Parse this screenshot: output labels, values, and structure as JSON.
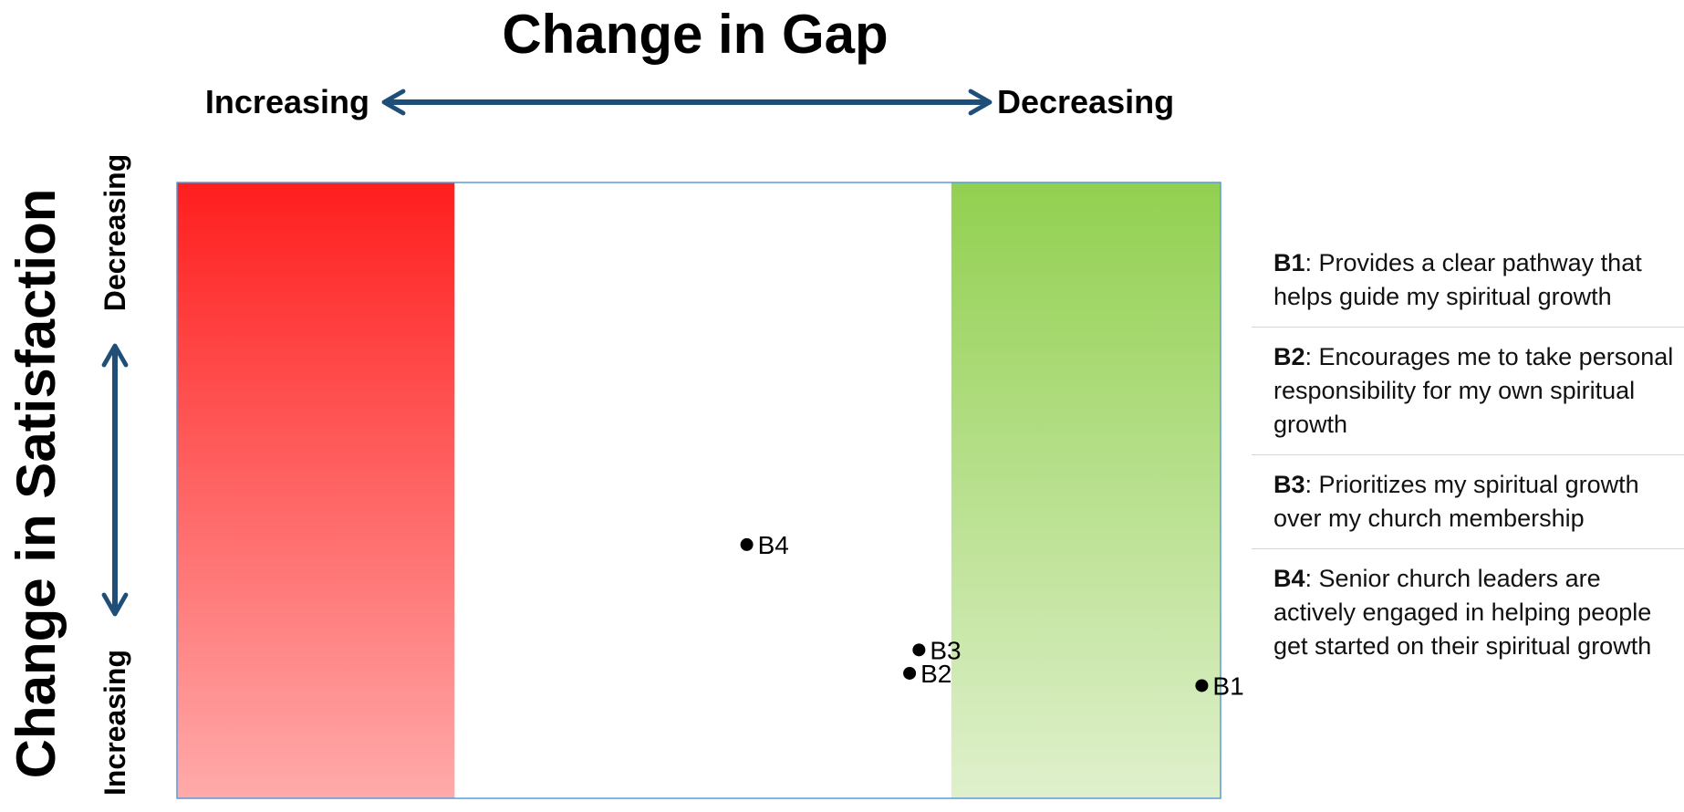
{
  "chart_data": {
    "type": "scatter",
    "title": "Change in Gap",
    "x_axis": {
      "left_label": "Increasing",
      "right_label": "Decreasing"
    },
    "y_axis": {
      "title": "Change in Satisfaction",
      "top_label": "Decreasing",
      "bottom_label": "Increasing"
    },
    "xlim": [
      0,
      1
    ],
    "ylim": [
      0,
      1
    ],
    "grid": false,
    "zones": [
      {
        "name": "increasing-gap-zone",
        "x_range": [
          0,
          0.266
        ],
        "color_top": "#ff1e1e",
        "color_bottom": "#ffaaaa"
      },
      {
        "name": "decreasing-gap-zone",
        "x_range": [
          0.742,
          1.0
        ],
        "color_top": "#92d050",
        "color_bottom": "#dff0cc"
      }
    ],
    "points": [
      {
        "label": "B1",
        "x": 0.982,
        "y": 0.183
      },
      {
        "label": "B2",
        "x": 0.702,
        "y": 0.203
      },
      {
        "label": "B3",
        "x": 0.711,
        "y": 0.241
      },
      {
        "label": "B4",
        "x": 0.546,
        "y": 0.412
      }
    ],
    "colors": {
      "arrow": "#1f4e79",
      "frame": "#5b9bd5",
      "marker": "#000000"
    }
  },
  "legend": [
    {
      "code": "B1",
      "text": ": Provides a clear pathway that helps guide my spiritual growth"
    },
    {
      "code": "B2",
      "text": ": Encourages me to take personal responsibility for my own spiritual growth"
    },
    {
      "code": "B3",
      "text": ": Prioritizes my spiritual growth over my church membership"
    },
    {
      "code": "B4",
      "text": ": Senior church leaders are actively engaged in helping people get started on their spiritual growth"
    }
  ]
}
